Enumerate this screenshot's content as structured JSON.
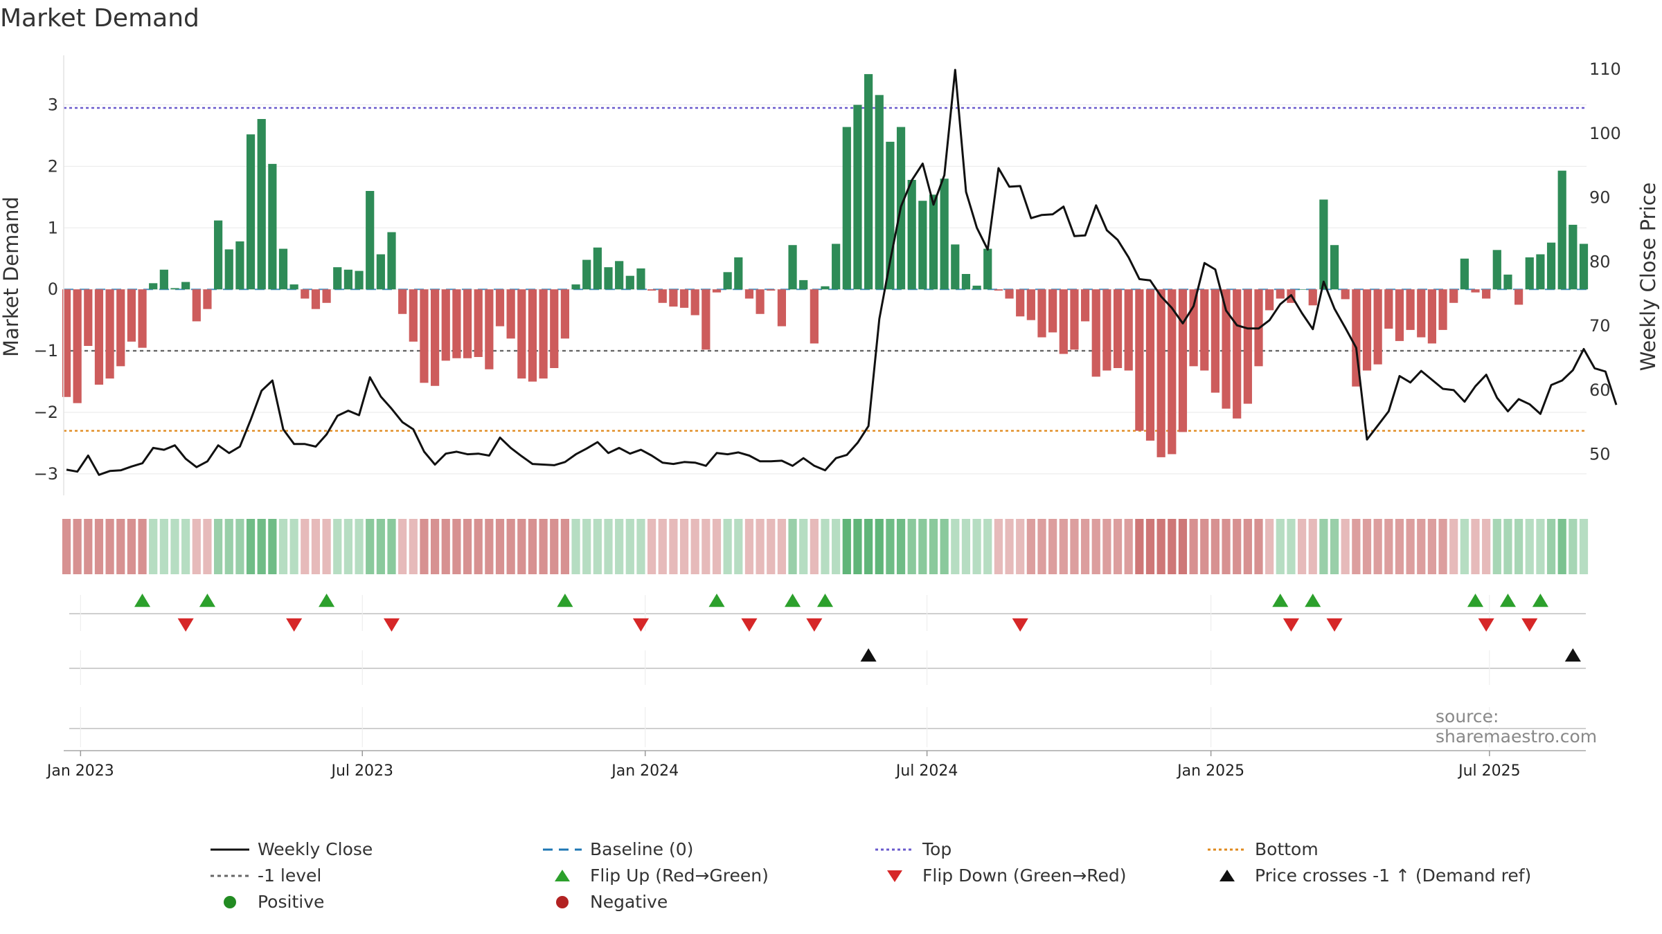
{
  "title": "Market Demand",
  "source": "source: sharemaestro.com",
  "legend": {
    "weekly_close": "Weekly Close",
    "baseline": "Baseline (0)",
    "top": "Top",
    "bottom": "Bottom",
    "minus1": "-1 level",
    "flip_up": "Flip Up (Red→Green)",
    "flip_down": "Flip Down (Green→Red)",
    "price_cross": "Price crosses -1 ↑ (Demand ref)",
    "positive": "Positive",
    "negative": "Negative"
  },
  "colors": {
    "positive": "#2e8b57",
    "negative": "#cd5c5c",
    "price": "#111111",
    "top": "#6a5acd",
    "bottom": "#e08a1e",
    "minus1": "#666666",
    "baseline": "#1f77b4",
    "flip_up": "#2ca02c",
    "flip_down": "#d62728",
    "positive_dot": "#228b22",
    "negative_dot": "#b22222"
  },
  "chart_data": {
    "type": "bar",
    "ylabel": "Market Demand",
    "y2label": "Weekly Close Price",
    "ylim": [
      -3.35,
      3.85
    ],
    "y2lim": [
      43.5,
      112.5
    ],
    "yticks": [
      -3,
      -2,
      -1,
      0,
      1,
      2,
      3
    ],
    "ytick_labels": [
      "−3",
      "−2",
      "−1",
      "0",
      "1",
      "2",
      "3"
    ],
    "y2ticks": [
      50,
      60,
      70,
      80,
      90,
      100,
      110
    ],
    "top_level": 2.95,
    "bottom_level": -2.3,
    "minus1_level": -1.0,
    "x_ticks": [
      {
        "week": 1.3,
        "label": "Jan 2023"
      },
      {
        "week": 27.3,
        "label": "Jul 2023"
      },
      {
        "week": 53.4,
        "label": "Jan 2024"
      },
      {
        "week": 79.4,
        "label": "Jul 2024"
      },
      {
        "week": 105.6,
        "label": "Jan 2025"
      },
      {
        "week": 131.3,
        "label": "Jul 2025"
      }
    ],
    "demand": [
      -1.75,
      -1.85,
      -0.92,
      -1.55,
      -1.45,
      -1.25,
      -0.85,
      -0.95,
      0.1,
      0.32,
      0.02,
      0.12,
      -0.52,
      -0.32,
      1.12,
      0.65,
      0.78,
      2.52,
      2.77,
      2.04,
      0.66,
      0.08,
      -0.15,
      -0.32,
      -0.22,
      0.36,
      0.32,
      0.3,
      1.6,
      0.57,
      0.93,
      -0.4,
      -0.85,
      -1.52,
      -1.57,
      -1.16,
      -1.12,
      -1.12,
      -1.1,
      -1.3,
      -0.6,
      -0.8,
      -1.45,
      -1.5,
      -1.45,
      -1.28,
      -0.8,
      0.08,
      0.48,
      0.68,
      0.36,
      0.46,
      0.22,
      0.34,
      -0.02,
      -0.22,
      -0.28,
      -0.3,
      -0.42,
      -0.98,
      -0.05,
      0.28,
      0.52,
      -0.15,
      -0.4,
      -0.02,
      -0.6,
      0.72,
      0.15,
      -0.88,
      0.05,
      0.74,
      2.64,
      3.0,
      3.5,
      3.16,
      2.4,
      2.64,
      1.78,
      1.44,
      1.54,
      1.8,
      0.73,
      0.25,
      0.06,
      0.66,
      -0.02,
      -0.15,
      -0.44,
      -0.5,
      -0.78,
      -0.7,
      -1.05,
      -0.98,
      -0.52,
      -1.42,
      -1.32,
      -1.28,
      -1.32,
      -2.3,
      -2.46,
      -2.73,
      -2.68,
      -2.32,
      -1.25,
      -1.32,
      -1.68,
      -1.94,
      -2.1,
      -1.86,
      -1.25,
      -0.34,
      -0.15,
      -0.22,
      0.0,
      -0.26,
      1.46,
      0.72,
      -0.16,
      -1.58,
      -1.32,
      -1.22,
      -0.64,
      -0.84,
      -0.66,
      -0.78,
      -0.88,
      -0.66,
      -0.22,
      0.5,
      -0.05,
      -0.15,
      0.64,
      0.24,
      -0.25,
      0.52,
      0.57,
      0.76,
      1.93,
      1.05,
      0.74
    ],
    "price": [
      47.5,
      47.2,
      49.7,
      46.7,
      47.3,
      47.4,
      48.0,
      48.5,
      50.9,
      50.6,
      51.3,
      49.2,
      47.9,
      48.8,
      51.3,
      50.1,
      51.1,
      55.3,
      59.8,
      61.4,
      53.8,
      51.5,
      51.5,
      51.1,
      53.0,
      55.9,
      56.7,
      56.0,
      61.9,
      58.9,
      57.0,
      54.9,
      53.8,
      50.3,
      48.3,
      50.0,
      50.3,
      49.9,
      50.0,
      49.7,
      52.5,
      50.9,
      49.6,
      48.4,
      48.3,
      48.2,
      48.7,
      49.9,
      50.8,
      51.8,
      50.1,
      50.9,
      50.0,
      50.6,
      49.7,
      48.6,
      48.4,
      48.7,
      48.6,
      48.1,
      50.1,
      49.9,
      50.2,
      49.7,
      48.8,
      48.8,
      48.9,
      48.1,
      49.3,
      48.1,
      47.4,
      49.3,
      49.8,
      51.7,
      54.3,
      71.0,
      80.0,
      88.5,
      92.6,
      95.2,
      88.8,
      93.4,
      109.8,
      90.8,
      85.2,
      81.8,
      94.5,
      91.6,
      91.7,
      86.7,
      87.2,
      87.3,
      88.5,
      83.9,
      84.0,
      88.7,
      84.8,
      83.3,
      80.6,
      77.2,
      77.0,
      74.5,
      72.7,
      70.3,
      73.0,
      79.7,
      78.7,
      72.3,
      70.0,
      69.5,
      69.5,
      70.8,
      73.3,
      74.7,
      71.9,
      69.4,
      76.8,
      72.6,
      69.6,
      66.5,
      52.2,
      54.4,
      56.6,
      62.1,
      61.1,
      62.9,
      61.5,
      60.1,
      59.9,
      58.1,
      60.5,
      62.3,
      58.7,
      56.6,
      58.5,
      57.7,
      56.2,
      60.7,
      61.4,
      63.0,
      66.3,
      63.3,
      62.8,
      57.6
    ],
    "hist_shade": [
      -0.6,
      -0.6,
      -0.6,
      -0.6,
      -0.6,
      -0.6,
      -0.6,
      -0.6,
      0.3,
      0.3,
      0.3,
      0.3,
      -0.3,
      -0.3,
      0.5,
      0.5,
      0.5,
      0.8,
      0.8,
      0.8,
      0.3,
      0.3,
      -0.3,
      -0.3,
      -0.3,
      0.3,
      0.3,
      0.3,
      0.6,
      0.6,
      0.6,
      -0.3,
      -0.3,
      -0.6,
      -0.6,
      -0.6,
      -0.6,
      -0.6,
      -0.6,
      -0.6,
      -0.6,
      -0.6,
      -0.6,
      -0.6,
      -0.6,
      -0.6,
      -0.6,
      0.3,
      0.3,
      0.3,
      0.3,
      0.3,
      0.3,
      0.3,
      -0.3,
      -0.3,
      -0.3,
      -0.3,
      -0.3,
      -0.3,
      -0.3,
      0.3,
      0.3,
      -0.3,
      -0.3,
      -0.3,
      -0.3,
      0.5,
      0.3,
      -0.3,
      0.3,
      0.3,
      0.9,
      0.9,
      0.9,
      0.9,
      0.8,
      0.8,
      0.6,
      0.6,
      0.6,
      0.6,
      0.3,
      0.3,
      0.3,
      0.3,
      -0.3,
      -0.3,
      -0.3,
      -0.5,
      -0.5,
      -0.5,
      -0.5,
      -0.5,
      -0.5,
      -0.5,
      -0.5,
      -0.5,
      -0.5,
      -0.8,
      -0.8,
      -0.8,
      -0.8,
      -0.8,
      -0.6,
      -0.6,
      -0.6,
      -0.6,
      -0.6,
      -0.6,
      -0.6,
      -0.3,
      0.3,
      0.3,
      -0.3,
      -0.3,
      0.5,
      0.5,
      -0.3,
      -0.5,
      -0.5,
      -0.5,
      -0.5,
      -0.5,
      -0.5,
      -0.5,
      -0.5,
      -0.5,
      -0.3,
      0.3,
      -0.3,
      -0.3,
      0.4,
      0.4,
      0.4,
      0.3,
      0.3,
      0.5,
      0.7,
      0.4,
      0.3
    ],
    "flip_up_weeks": [
      7,
      13,
      24,
      46,
      60,
      67,
      70,
      112,
      115,
      130,
      133,
      136
    ],
    "flip_down_weeks": [
      11,
      21,
      30,
      53,
      63,
      69,
      88,
      113,
      117,
      131,
      135
    ],
    "price_cross_weeks": [
      74,
      139
    ]
  }
}
